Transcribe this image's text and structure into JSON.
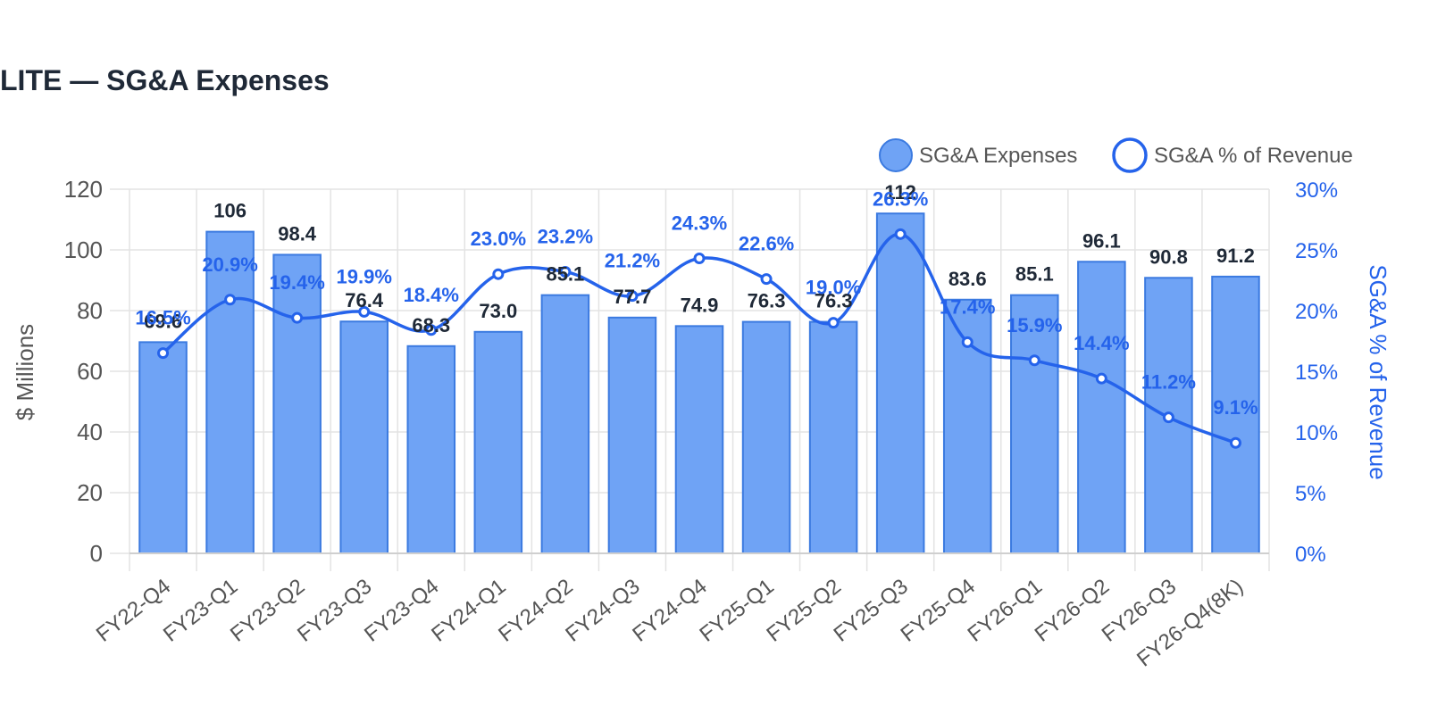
{
  "title": "LITE — SG&A Expenses",
  "colors": {
    "bar_fill": "#6fa3f5",
    "bar_stroke": "#3b7ae0",
    "line": "#2563eb",
    "grid": "#e3e3e3",
    "title": "#1f2937"
  },
  "chart_data": {
    "type": "bar",
    "title": "LITE — SG&A Expenses",
    "categories": [
      "FY22-Q4",
      "FY23-Q1",
      "FY23-Q2",
      "FY23-Q3",
      "FY23-Q4",
      "FY24-Q1",
      "FY24-Q2",
      "FY24-Q3",
      "FY24-Q4",
      "FY25-Q1",
      "FY25-Q2",
      "FY25-Q3",
      "FY25-Q4",
      "FY26-Q1",
      "FY26-Q2",
      "FY26-Q3",
      "FY26-Q4(8K)"
    ],
    "ylabel": "$ Millions",
    "y2label": "SG&A % of Revenue",
    "ylim": [
      0,
      120
    ],
    "y2lim": [
      0,
      30
    ],
    "yticks": [
      "0",
      "20",
      "40",
      "60",
      "80",
      "100",
      "120"
    ],
    "y2ticks": [
      "0%",
      "5%",
      "10%",
      "15%",
      "20%",
      "25%",
      "30%"
    ],
    "grid": true,
    "legend_position": "top-right",
    "series": [
      {
        "name": "SG&A Expenses",
        "type": "bar",
        "axis": "left",
        "values": [
          69.6,
          106,
          98.4,
          76.4,
          68.3,
          73.0,
          85.1,
          77.7,
          74.9,
          76.3,
          76.3,
          112,
          83.6,
          85.1,
          96.1,
          90.8,
          91.2
        ],
        "labels": [
          "69.6",
          "106",
          "98.4",
          "76.4",
          "68.3",
          "73.0",
          "85.1",
          "77.7",
          "74.9",
          "76.3",
          "76.3",
          "112",
          "83.6",
          "85.1",
          "96.1",
          "90.8",
          "91.2"
        ]
      },
      {
        "name": "SG&A % of Revenue",
        "type": "line",
        "axis": "right",
        "values": [
          16.5,
          20.9,
          19.4,
          19.9,
          18.4,
          23.0,
          23.2,
          21.2,
          24.3,
          22.6,
          19.0,
          26.3,
          17.4,
          15.9,
          14.4,
          11.2,
          9.1
        ],
        "labels": [
          "16.5%",
          "20.9%",
          "19.4%",
          "19.9%",
          "18.4%",
          "23.0%",
          "23.2%",
          "21.2%",
          "24.3%",
          "22.6%",
          "19.0%",
          "26.3%",
          "17.4%",
          "15.9%",
          "14.4%",
          "11.2%",
          "9.1%"
        ]
      }
    ]
  }
}
